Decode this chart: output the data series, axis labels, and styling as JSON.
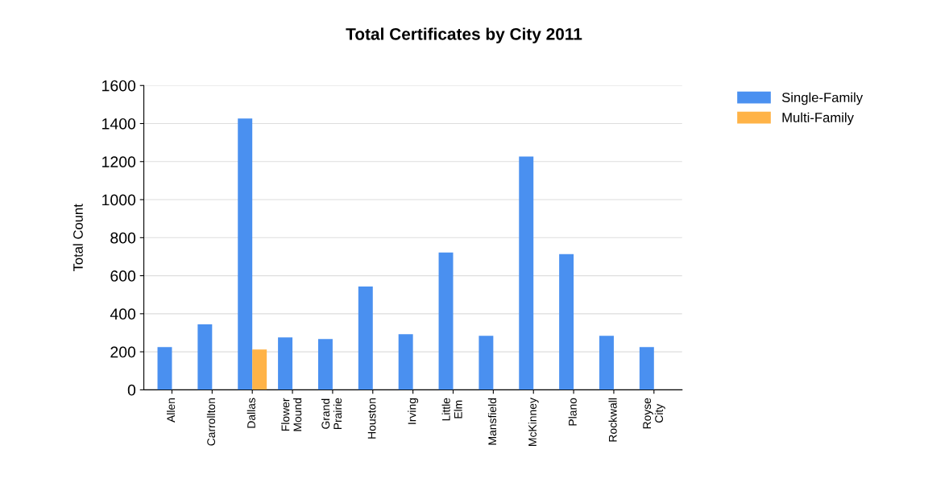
{
  "chart_data": {
    "type": "bar",
    "title": "Total Certificates by City 2011",
    "ylabel": "Total Count",
    "categories": [
      "Allen",
      "Carrollton",
      "Dallas",
      "Flower\nMound",
      "Grand\nPrairie",
      "Houston",
      "Irving",
      "Little\nElm",
      "Mansfield",
      "McKinney",
      "Plano",
      "Rockwall",
      "Royse\nCity"
    ],
    "series": [
      {
        "name": "Single-Family",
        "color": "#4a90f0",
        "values": [
          225,
          344,
          1426,
          276,
          267,
          543,
          293,
          722,
          284,
          1227,
          713,
          284,
          225
        ]
      },
      {
        "name": "Multi-Family",
        "color": "#ffb347",
        "values": [
          null,
          null,
          212,
          null,
          null,
          null,
          null,
          null,
          null,
          null,
          null,
          null,
          null
        ]
      }
    ],
    "ylim": [
      0,
      1600
    ],
    "yticks": [
      0,
      200,
      400,
      600,
      800,
      1000,
      1200,
      1400,
      1600
    ],
    "grid": "y",
    "legend": "top right"
  }
}
